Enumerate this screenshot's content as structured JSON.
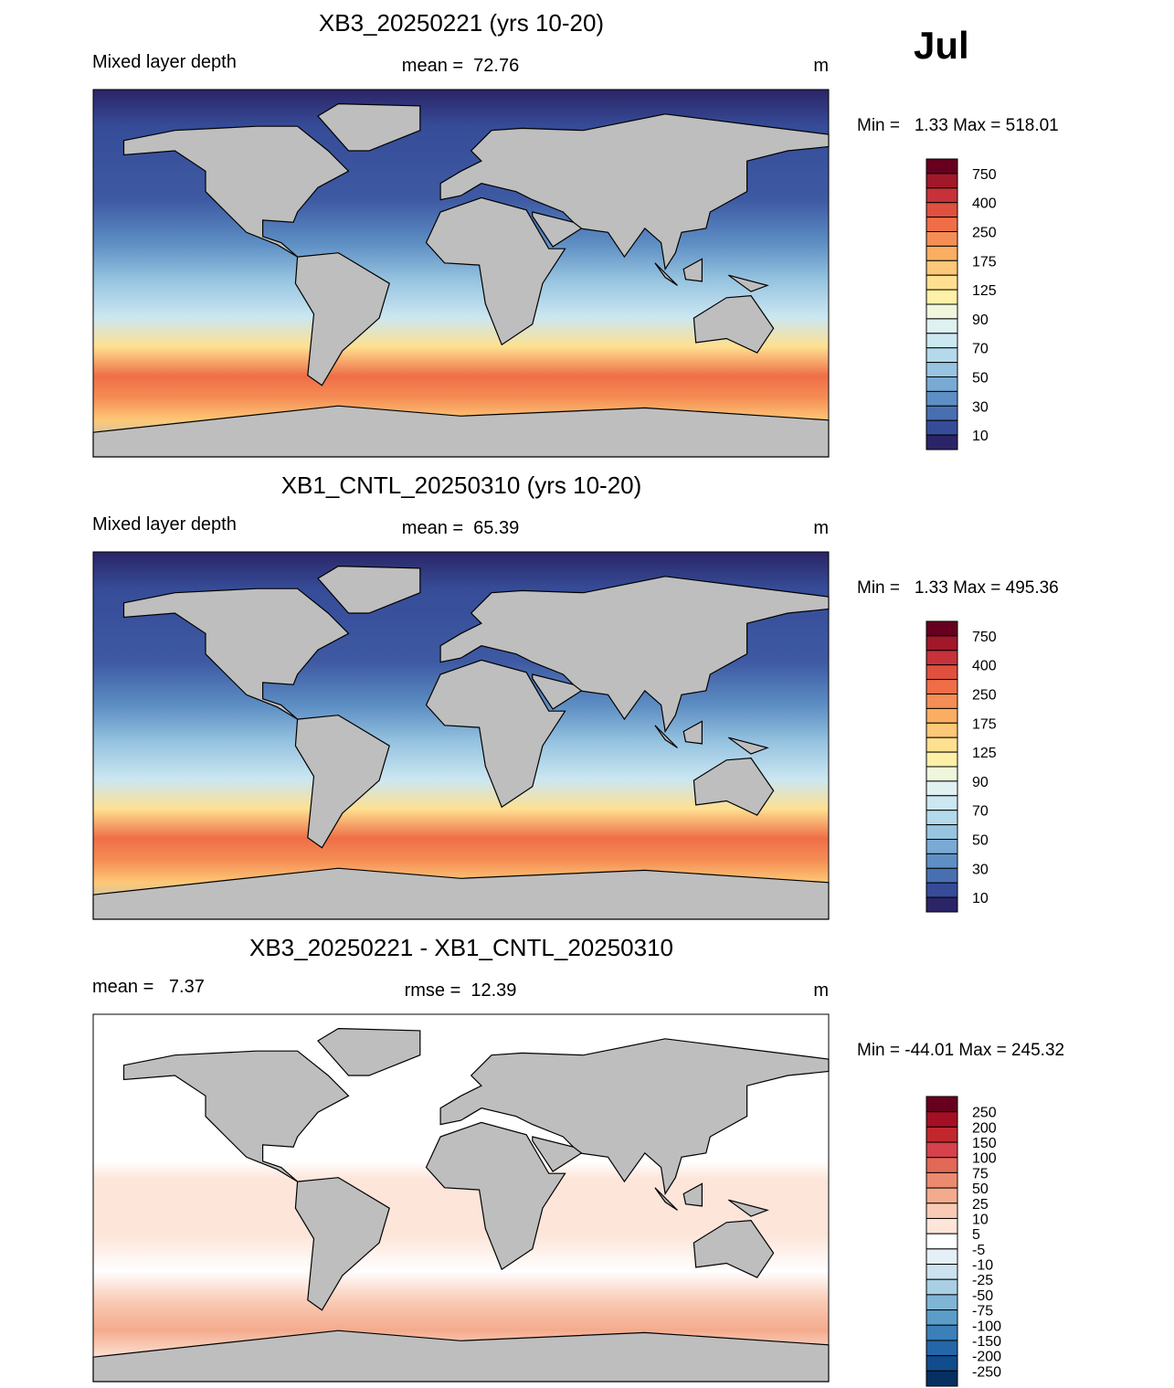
{
  "month": "Jul",
  "panels": [
    {
      "title": "XB3_20250221 (yrs 10-20)",
      "left_label": "Mixed layer depth",
      "center_label": "mean =  72.76",
      "units": "m",
      "range_label": "Min =   1.33 Max = 518.01",
      "colorbar": {
        "labels": [
          "750",
          "400",
          "250",
          "175",
          "125",
          "90",
          "70",
          "50",
          "30",
          "10"
        ],
        "colors": [
          "#67001f",
          "#a0182a",
          "#c7313a",
          "#e0503e",
          "#ef6e47",
          "#f58e55",
          "#fbae61",
          "#fdc877",
          "#fee090",
          "#fff0a8",
          "#eef6dc",
          "#e0f1f2",
          "#cbe7f1",
          "#b3d9ea",
          "#97c4e0",
          "#79aad3",
          "#5e8fc4",
          "#4870b1",
          "#364c98",
          "#2b2466"
        ]
      }
    },
    {
      "title": "XB1_CNTL_20250310 (yrs 10-20)",
      "left_label": "Mixed layer depth",
      "center_label": "mean =  65.39",
      "units": "m",
      "range_label": "Min =   1.33 Max = 495.36",
      "colorbar": {
        "labels": [
          "750",
          "400",
          "250",
          "175",
          "125",
          "90",
          "70",
          "50",
          "30",
          "10"
        ],
        "colors": [
          "#67001f",
          "#a0182a",
          "#c7313a",
          "#e0503e",
          "#ef6e47",
          "#f58e55",
          "#fbae61",
          "#fdc877",
          "#fee090",
          "#fff0a8",
          "#eef6dc",
          "#e0f1f2",
          "#cbe7f1",
          "#b3d9ea",
          "#97c4e0",
          "#79aad3",
          "#5e8fc4",
          "#4870b1",
          "#364c98",
          "#2b2466"
        ]
      }
    },
    {
      "title": "XB3_20250221 - XB1_CNTL_20250310",
      "left_label": "mean =   7.37",
      "center_label": "rmse =  12.39",
      "units": "m",
      "range_label": "Min = -44.01 Max = 245.32",
      "colorbar": {
        "labels": [
          "250",
          "200",
          "150",
          "100",
          "75",
          "50",
          "25",
          "10",
          "5",
          "-5",
          "-10",
          "-25",
          "-50",
          "-75",
          "-100",
          "-150",
          "-200",
          "-250"
        ],
        "colors": [
          "#67001f",
          "#a50f26",
          "#c1272d",
          "#d6414b",
          "#e26857",
          "#eb8a6e",
          "#f4ab8d",
          "#f9cbb5",
          "#fde5d9",
          "#ffffff",
          "#e4eff6",
          "#cbe2ef",
          "#a8cfe4",
          "#80b5d6",
          "#5b9cc8",
          "#3b80b9",
          "#2466a8",
          "#114c8c",
          "#053061"
        ]
      }
    }
  ]
}
